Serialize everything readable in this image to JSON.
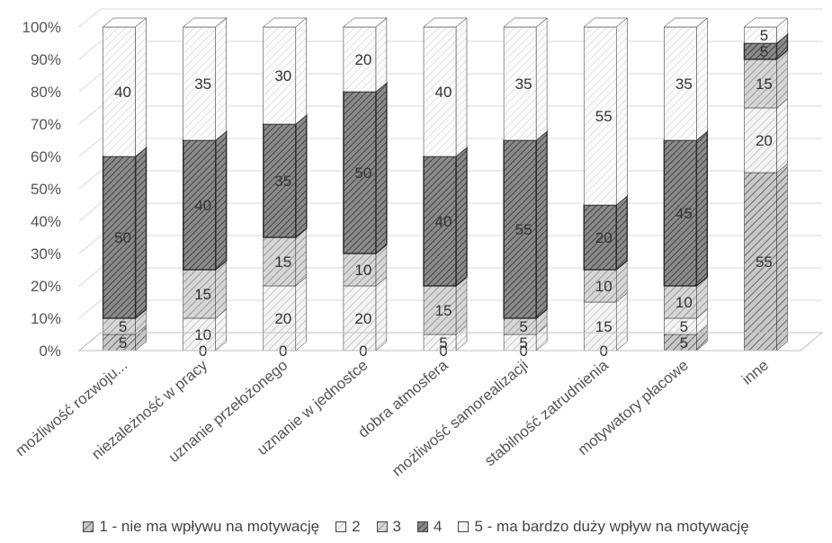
{
  "chart_data": {
    "type": "bar",
    "stacked": true,
    "percent_stacked": true,
    "three_d": true,
    "categories": [
      "możliwość rozwoju...",
      "niezależność w pracy",
      "uznanie przełożonego",
      "uznanie w jednostce",
      "dobra atmosfera",
      "możliwość samorealizacji",
      "stabilność zatrudnienia",
      "motywatory płacowe",
      "inne"
    ],
    "series": [
      {
        "name": "1 - nie ma wpływu na motywację",
        "values": [
          5,
          0,
          0,
          0,
          0,
          0,
          0,
          5,
          55
        ],
        "pattern": "stripe-medium"
      },
      {
        "name": "2",
        "values": [
          0,
          10,
          20,
          20,
          5,
          5,
          15,
          5,
          20
        ],
        "pattern": "stripe-light"
      },
      {
        "name": "3",
        "values": [
          5,
          15,
          15,
          10,
          15,
          5,
          10,
          10,
          15
        ],
        "pattern": "stripe-medium-gray"
      },
      {
        "name": "4",
        "values": [
          50,
          40,
          35,
          50,
          40,
          55,
          20,
          45,
          5
        ],
        "pattern": "stripe-dark"
      },
      {
        "name": "5 - ma bardzo duży wpływ na motywację",
        "values": [
          40,
          35,
          30,
          20,
          40,
          35,
          55,
          35,
          5
        ],
        "pattern": "stripe-faint"
      }
    ],
    "data_labels": [
      [
        "5",
        "0",
        "0",
        "0",
        "0",
        "0",
        "0",
        "5",
        "55"
      ],
      [
        "",
        "10",
        "20",
        "20",
        "5",
        "5",
        "15",
        "5",
        "20"
      ],
      [
        "5",
        "15",
        "15",
        "10",
        "15",
        "5",
        "10",
        "10",
        "15"
      ],
      [
        "50",
        "40",
        "35",
        "50",
        "40",
        "55",
        "20",
        "45",
        "5"
      ],
      [
        "40",
        "35",
        "30",
        "20",
        "40",
        "35",
        "55",
        "35",
        "5"
      ]
    ],
    "y_ticks": [
      "0%",
      "10%",
      "20%",
      "30%",
      "40%",
      "50%",
      "60%",
      "70%",
      "80%",
      "90%",
      "100%"
    ],
    "ylim": [
      0,
      100
    ],
    "grid": true,
    "legend_position": "bottom",
    "colors": {
      "axis": "#bfbfbf",
      "grid": "#d9d9d9",
      "text": "#555555",
      "edge": "#2a2a2a"
    }
  }
}
